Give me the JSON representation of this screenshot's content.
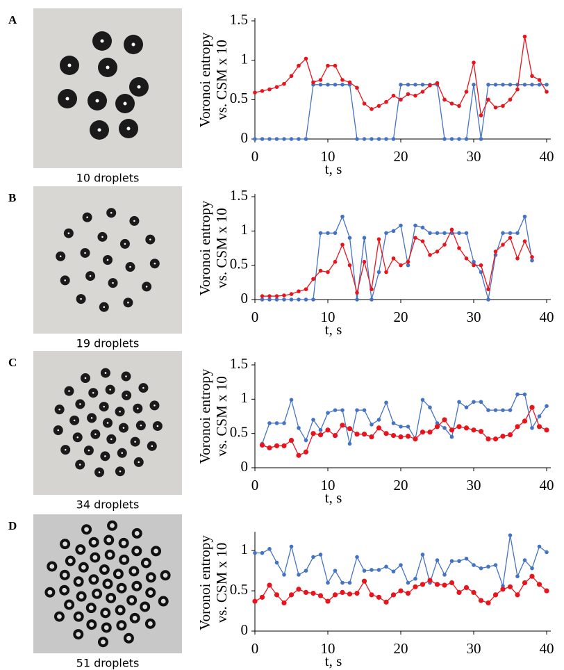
{
  "chart_data": [
    {
      "type": "line",
      "panel_label": "A",
      "image_caption": "10 droplets",
      "ylabel": [
        "Voronoi entropy",
        "vs. CSM x 10"
      ],
      "xlabel": "t, s",
      "xlim": [
        0,
        40
      ],
      "xticks": [
        0,
        10,
        20,
        30,
        40
      ],
      "ylim": [
        0,
        1.5
      ],
      "yticks": [
        0,
        0.5,
        1,
        1.5
      ],
      "x": [
        0,
        1,
        2,
        3,
        4,
        5,
        6,
        7,
        8,
        9,
        10,
        11,
        12,
        13,
        14,
        15,
        16,
        17,
        18,
        19,
        20,
        21,
        22,
        23,
        24,
        25,
        26,
        27,
        28,
        29,
        30,
        31,
        32,
        33,
        34,
        35,
        36,
        37,
        38,
        39,
        40
      ],
      "series": [
        {
          "color": "#4472c4",
          "values": [
            0,
            0,
            0,
            0,
            0,
            0,
            0,
            0,
            0.69,
            0.69,
            0.69,
            0.69,
            0.69,
            0.69,
            0,
            0,
            0,
            0,
            0,
            0,
            0.69,
            0.69,
            0.69,
            0.69,
            0.69,
            0.69,
            0,
            0,
            0,
            0,
            0.69,
            0,
            0.69,
            0.69,
            0.69,
            0.69,
            0.69,
            0.69,
            0.69,
            0.69,
            0.69
          ]
        },
        {
          "color": "#e8141c",
          "values": [
            0.59,
            0.61,
            0.63,
            0.66,
            0.7,
            0.8,
            0.93,
            1.02,
            0.72,
            0.75,
            0.93,
            0.93,
            0.75,
            0.72,
            0.65,
            0.45,
            0.38,
            0.42,
            0.47,
            0.55,
            0.5,
            0.57,
            0.55,
            0.6,
            0.68,
            0.71,
            0.5,
            0.45,
            0.42,
            0.6,
            0.97,
            0.3,
            0.5,
            0.4,
            0.42,
            0.5,
            0.63,
            1.3,
            0.8,
            0.75,
            0.6
          ]
        }
      ]
    },
    {
      "type": "line",
      "panel_label": "B",
      "image_caption": "19 droplets",
      "ylabel": [
        "Voronoi entropy",
        "vs. CSM x 10"
      ],
      "xlabel": "t, s",
      "xlim": [
        0,
        40
      ],
      "xticks": [
        0,
        10,
        20,
        30,
        40
      ],
      "ylim": [
        0,
        1.5
      ],
      "yticks": [
        0,
        0.5,
        1,
        1.5
      ],
      "x": [
        1,
        2,
        3,
        4,
        5,
        6,
        7,
        8,
        9,
        10,
        11,
        12,
        13,
        14,
        15,
        16,
        17,
        18,
        19,
        20,
        21,
        22,
        23,
        24,
        25,
        26,
        27,
        28,
        29,
        30,
        31,
        32,
        33,
        34,
        35,
        36,
        37,
        38
      ],
      "series": [
        {
          "color": "#4472c4",
          "values": [
            0,
            0,
            0,
            0,
            0,
            0,
            0,
            0,
            0.97,
            0.97,
            0.97,
            1.21,
            0.9,
            0,
            0.9,
            0,
            0.4,
            0.97,
            1.0,
            1.08,
            0.5,
            1.08,
            1.05,
            0.97,
            0.97,
            0.97,
            0.97,
            0.97,
            0.97,
            0.55,
            0.4,
            0,
            0.65,
            0.97,
            0.97,
            0.97,
            1.21,
            0.57
          ]
        },
        {
          "color": "#e8141c",
          "values": [
            0.05,
            0.05,
            0.05,
            0.06,
            0.08,
            0.12,
            0.15,
            0.3,
            0.42,
            0.4,
            0.55,
            0.8,
            0.5,
            0.1,
            0.55,
            0.15,
            0.88,
            0.4,
            0.6,
            0.5,
            0.55,
            0.9,
            0.85,
            0.65,
            0.7,
            0.8,
            1.02,
            0.75,
            0.6,
            0.5,
            0.5,
            0.15,
            0.7,
            0.8,
            0.9,
            0.6,
            0.85,
            0.62
          ]
        }
      ]
    },
    {
      "type": "line",
      "panel_label": "C",
      "image_caption": "34 droplets",
      "ylabel": [
        "Voronoi entropy",
        "vs. CSM x 10"
      ],
      "xlabel": "t, s",
      "xlim": [
        0,
        40
      ],
      "xticks": [
        0,
        10,
        20,
        30,
        40
      ],
      "ylim": [
        0,
        1.5
      ],
      "yticks": [
        0,
        0.5,
        1,
        1.5
      ],
      "x": [
        1,
        2,
        3,
        4,
        5,
        6,
        7,
        8,
        9,
        10,
        11,
        12,
        13,
        14,
        15,
        16,
        17,
        18,
        19,
        20,
        21,
        22,
        23,
        24,
        25,
        26,
        27,
        28,
        29,
        30,
        31,
        32,
        33,
        34,
        35,
        36,
        37,
        38,
        39,
        40
      ],
      "series": [
        {
          "color": "#4472c4",
          "values": [
            0.35,
            0.65,
            0.65,
            0.65,
            0.99,
            0.58,
            0.4,
            0.7,
            0.55,
            0.8,
            0.84,
            0.84,
            0.35,
            0.84,
            0.84,
            0.63,
            0.7,
            0.95,
            0.65,
            0.6,
            0.6,
            0.42,
            0.99,
            0.88,
            0.65,
            0.58,
            0.45,
            0.96,
            0.88,
            0.96,
            0.96,
            0.84,
            0.84,
            0.84,
            0.84,
            1.07,
            1.07,
            0.58,
            0.75,
            0.9
          ]
        },
        {
          "color": "#e8141c",
          "values": [
            0.33,
            0.29,
            0.32,
            0.32,
            0.4,
            0.18,
            0.23,
            0.5,
            0.48,
            0.55,
            0.47,
            0.62,
            0.57,
            0.49,
            0.49,
            0.45,
            0.58,
            0.5,
            0.47,
            0.45,
            0.46,
            0.42,
            0.52,
            0.52,
            0.6,
            0.7,
            0.55,
            0.6,
            0.58,
            0.55,
            0.53,
            0.42,
            0.42,
            0.46,
            0.48,
            0.6,
            0.68,
            0.88,
            0.6,
            0.55
          ]
        }
      ]
    },
    {
      "type": "line",
      "panel_label": "D",
      "image_caption": "51 droplets",
      "ylabel": [
        "Voronoi entropy",
        "vs. CSM x 10"
      ],
      "xlabel": "t, s",
      "xlim": [
        0,
        40
      ],
      "xticks": [
        0,
        10,
        20,
        30,
        40
      ],
      "ylim": [
        0,
        1.2
      ],
      "yticks": [
        0,
        0.5,
        1
      ],
      "x": [
        0,
        1,
        2,
        3,
        4,
        5,
        6,
        7,
        8,
        9,
        10,
        11,
        12,
        13,
        14,
        15,
        16,
        17,
        18,
        19,
        20,
        21,
        22,
        23,
        24,
        25,
        26,
        27,
        28,
        29,
        30,
        31,
        32,
        33,
        34,
        35,
        36,
        37,
        38,
        39,
        40
      ],
      "series": [
        {
          "color": "#4472c4",
          "values": [
            0.97,
            0.97,
            1.02,
            0.85,
            0.7,
            1.05,
            0.7,
            0.75,
            0.92,
            0.95,
            0.6,
            0.75,
            0.6,
            0.6,
            0.92,
            0.75,
            0.76,
            0.76,
            0.8,
            0.74,
            0.82,
            0.6,
            0.65,
            0.95,
            0.6,
            0.88,
            0.7,
            0.87,
            0.87,
            0.9,
            0.82,
            0.78,
            0.8,
            0.82,
            0.56,
            1.19,
            0.68,
            0.88,
            0.78,
            1.05,
            0.98
          ]
        },
        {
          "color": "#e8141c",
          "values": [
            0.37,
            0.42,
            0.57,
            0.45,
            0.35,
            0.45,
            0.52,
            0.48,
            0.47,
            0.44,
            0.37,
            0.45,
            0.48,
            0.46,
            0.47,
            0.62,
            0.45,
            0.42,
            0.36,
            0.45,
            0.5,
            0.47,
            0.55,
            0.58,
            0.63,
            0.58,
            0.57,
            0.6,
            0.48,
            0.54,
            0.48,
            0.38,
            0.35,
            0.45,
            0.52,
            0.55,
            0.45,
            0.6,
            0.68,
            0.58,
            0.5
          ]
        }
      ]
    }
  ]
}
